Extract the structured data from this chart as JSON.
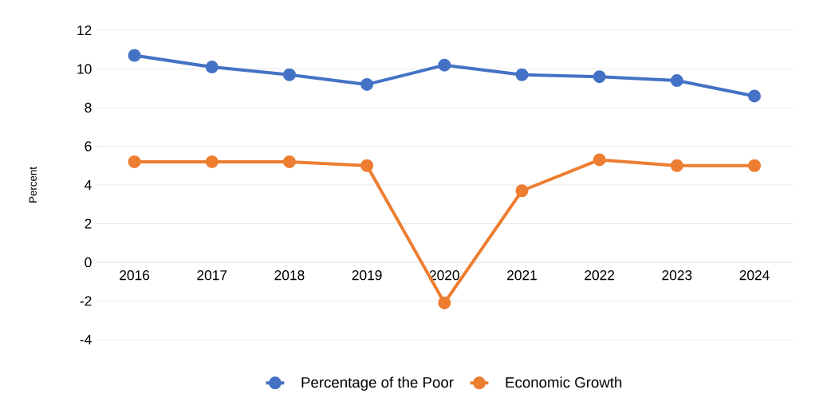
{
  "chart_data": {
    "type": "line",
    "ylabel": "Percent",
    "categories": [
      "2016",
      "2017",
      "2018",
      "2019",
      "2020",
      "2021",
      "2022",
      "2023",
      "2024"
    ],
    "series": [
      {
        "name": "Percentage of the Poor",
        "color": "#4472c4",
        "values": [
          10.7,
          10.1,
          9.7,
          9.2,
          10.2,
          9.7,
          9.6,
          9.4,
          8.6
        ]
      },
      {
        "name": "Economic Growth",
        "color": "#ed7d31",
        "values": [
          5.2,
          5.2,
          5.2,
          5.0,
          -2.1,
          3.7,
          5.3,
          5.0,
          5.0
        ]
      }
    ],
    "ylim": [
      -4,
      12
    ],
    "yticks": [
      -4,
      -2,
      0,
      2,
      4,
      6,
      8,
      10,
      12
    ],
    "grid": "y",
    "legend": "bottom",
    "marker": "circle",
    "line_style": "solid"
  }
}
